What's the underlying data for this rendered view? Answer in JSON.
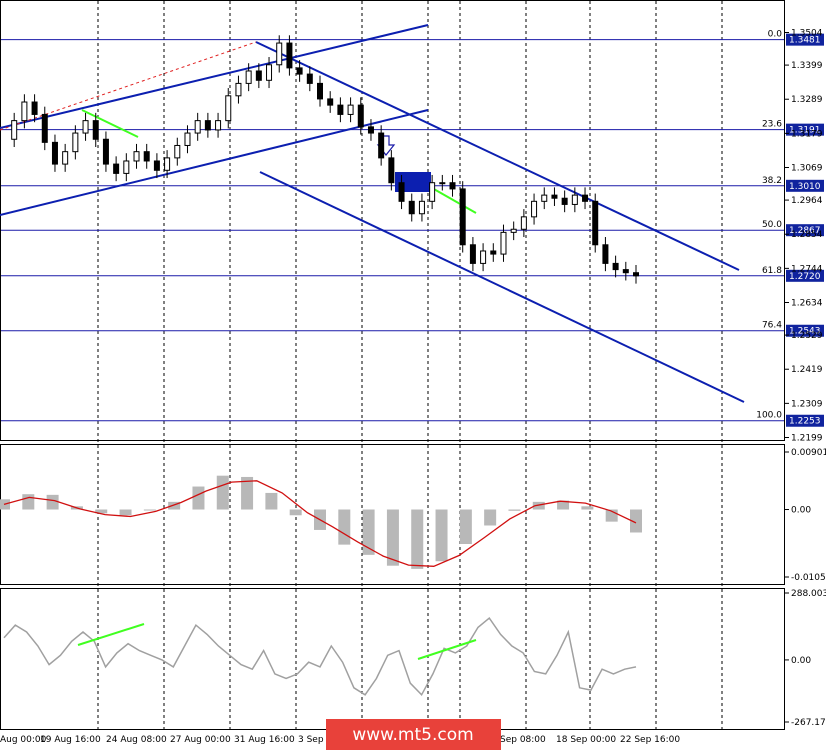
{
  "watermark": "www.mt5.com",
  "chart_data": [
    {
      "type": "candlestick",
      "symbol": "GBPUSD",
      "y_ticks": [
        1.3504,
        1.3399,
        1.3289,
        1.3179,
        1.3069,
        1.2964,
        1.2854,
        1.2744,
        1.2634,
        1.2529,
        1.2419,
        1.2309,
        1.2199
      ],
      "ylim": [
        1.2199,
        1.3504
      ],
      "fib_levels": [
        {
          "label": "0.0",
          "price": "1.3481",
          "value": 1.3481
        },
        {
          "label": "23.6",
          "price": "1.3191",
          "value": 1.3191
        },
        {
          "label": "38.2",
          "price": "1.3010",
          "value": 1.301
        },
        {
          "label": "50.0",
          "price": "1.2867",
          "value": 1.2867
        },
        {
          "label": "61.8",
          "price": "1.2720",
          "value": 1.272
        },
        {
          "label": "76.4",
          "price": "1.2543",
          "value": 1.2543
        },
        {
          "label": "100.0",
          "price": "1.2253",
          "value": 1.2253
        }
      ],
      "x_ticks": [
        "Aug 00:00",
        "19 Aug 16:00",
        "24 Aug 08:00",
        "27 Aug 00:00",
        "31 Aug 16:00",
        "3 Sep",
        "Sep 08:00",
        "18 Sep 00:00",
        "22 Sep 16:00"
      ],
      "close_path": [
        1.316,
        1.322,
        1.328,
        1.324,
        1.315,
        1.308,
        1.312,
        1.318,
        1.322,
        1.316,
        1.308,
        1.305,
        1.309,
        1.312,
        1.309,
        1.306,
        1.31,
        1.314,
        1.318,
        1.322,
        1.319,
        1.322,
        1.33,
        1.334,
        1.338,
        1.335,
        1.34,
        1.347,
        1.339,
        1.337,
        1.334,
        1.329,
        1.327,
        1.324,
        1.327,
        1.32,
        1.318,
        1.31,
        1.302,
        1.296,
        1.292,
        1.296,
        1.302,
        1.302,
        1.3,
        1.282,
        1.276,
        1.28,
        1.279,
        1.286,
        1.287,
        1.291,
        1.296,
        1.298,
        1.297,
        1.295,
        1.298,
        1.296,
        1.282,
        1.276,
        1.274,
        1.273,
        1.272
      ]
    },
    {
      "type": "histogram",
      "indicator": "MACD",
      "y_ticks": [
        "0.00901",
        "0.00",
        "-0.01057"
      ],
      "ylim": [
        -0.01057,
        0.00901
      ],
      "hist": [
        0.0016,
        0.0024,
        0.0023,
        0.0005,
        -0.0006,
        -0.0009,
        -0.0001,
        0.0012,
        0.0036,
        0.0053,
        0.0051,
        0.0026,
        -0.0009,
        -0.0032,
        -0.0055,
        -0.0071,
        -0.0088,
        -0.0093,
        -0.0081,
        -0.0054,
        -0.0025,
        -0.0002,
        0.0012,
        0.0014,
        0.0005,
        -0.0019,
        -0.0036
      ],
      "signal": [
        0.0008,
        0.0019,
        0.0014,
        0.0001,
        -0.0008,
        -0.0011,
        -0.0003,
        0.0011,
        0.0029,
        0.0043,
        0.0045,
        0.0026,
        -0.0005,
        -0.0027,
        -0.0051,
        -0.0073,
        -0.0087,
        -0.0089,
        -0.0072,
        -0.0044,
        -0.0015,
        0.0006,
        0.0013,
        0.001,
        -0.0002,
        -0.0021
      ]
    },
    {
      "type": "line",
      "indicator": "CCI",
      "y_ticks": [
        "288.0038",
        "0.00",
        "-267.170"
      ],
      "ylim": [
        -267.17,
        288.0038
      ],
      "values": [
        95,
        150,
        120,
        60,
        -20,
        20,
        80,
        120,
        80,
        -30,
        30,
        70,
        40,
        20,
        0,
        -30,
        60,
        150,
        110,
        60,
        20,
        -20,
        -40,
        40,
        -60,
        -80,
        -60,
        -10,
        -30,
        60,
        -10,
        -120,
        -150,
        -80,
        20,
        40,
        -100,
        -150,
        -60,
        50,
        30,
        60,
        140,
        180,
        110,
        60,
        30,
        -50,
        -60,
        20,
        120,
        -120,
        -130,
        -40,
        -60,
        -40,
        -30
      ]
    }
  ]
}
